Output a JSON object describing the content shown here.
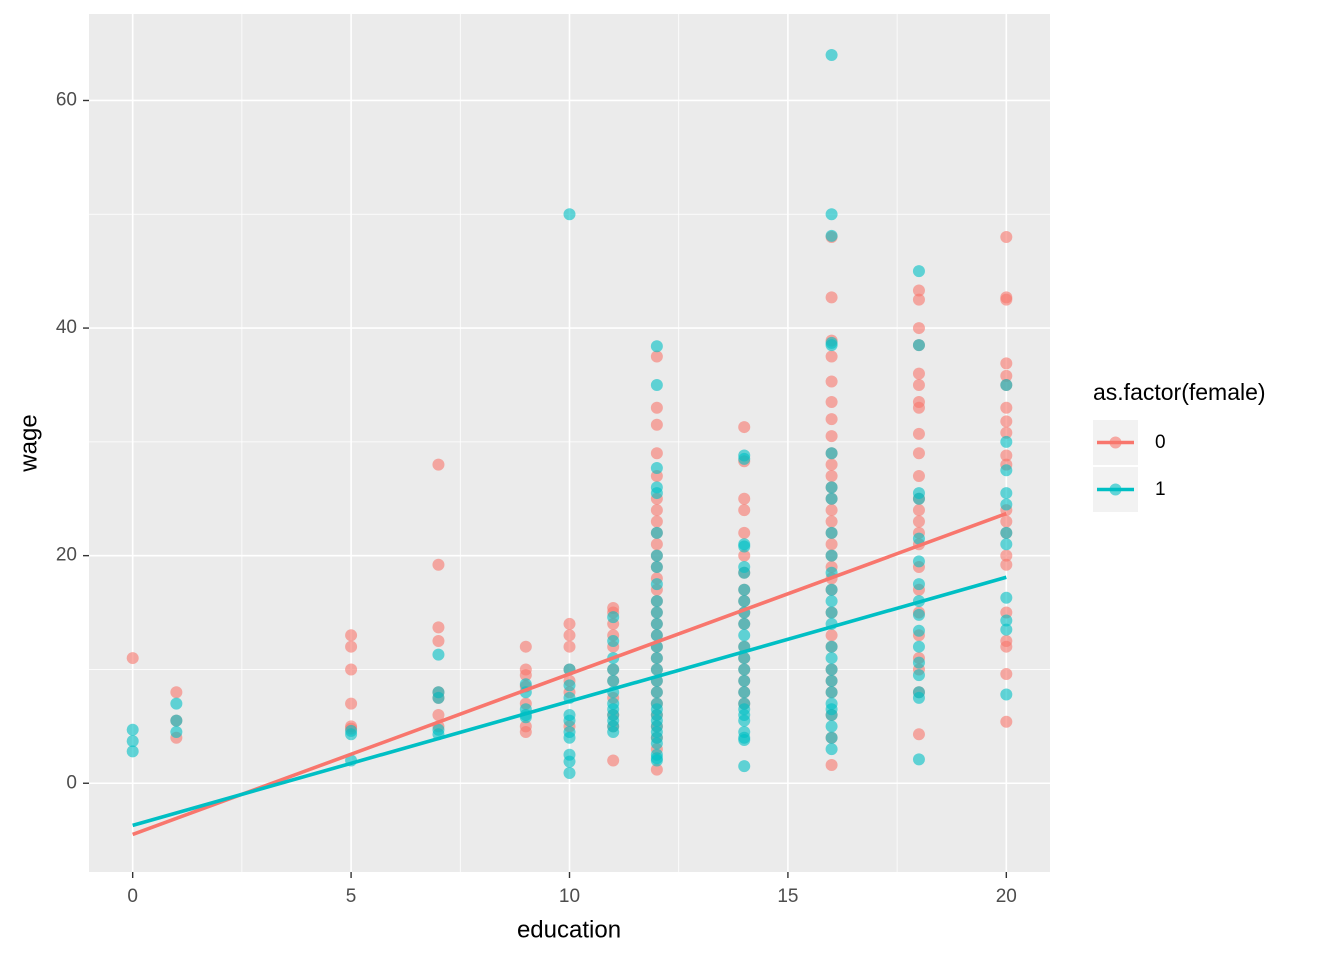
{
  "chart_data": {
    "type": "scatter",
    "x_label": "education",
    "y_label": "wage",
    "legend_title": "as.factor(female)",
    "legend_position": "right",
    "grid": true,
    "minor_grid": true,
    "xlim": [
      -1,
      21
    ],
    "ylim": [
      -7.8,
      67.6
    ],
    "xticks": [
      0,
      5,
      10,
      15,
      20
    ],
    "yticks": [
      0,
      20,
      40,
      60
    ],
    "series": [
      {
        "name": "0",
        "color": "#F8766D",
        "x": [
          0,
          1,
          1,
          1,
          5,
          5,
          5,
          5,
          5,
          5,
          7,
          7,
          7,
          7,
          7,
          7,
          7,
          7,
          9,
          9,
          9,
          9,
          9,
          9,
          9,
          10,
          10,
          10,
          10,
          10,
          10,
          10,
          11,
          11,
          11,
          11,
          11,
          11,
          11,
          11,
          11,
          11,
          11,
          12,
          12,
          12,
          12,
          12,
          12,
          12,
          12,
          12,
          12,
          12,
          12,
          12,
          12,
          12,
          12,
          12,
          12,
          12,
          12,
          12,
          12,
          12,
          12,
          12,
          12,
          12,
          12,
          12,
          14,
          14,
          14,
          14,
          14,
          14,
          14,
          14,
          14,
          14,
          14,
          14,
          14,
          14,
          14,
          14,
          14,
          16,
          16,
          16,
          16,
          16,
          16,
          16,
          16,
          16,
          16,
          16,
          16,
          16,
          16,
          16,
          16,
          16,
          16,
          16,
          16,
          16,
          16,
          16,
          16,
          16,
          16,
          16,
          16,
          16,
          16,
          18,
          18,
          18,
          18,
          18,
          18,
          18,
          18,
          18,
          18,
          18,
          18,
          18,
          18,
          18,
          18,
          18,
          18,
          18,
          18,
          18,
          18,
          18,
          18,
          20,
          20,
          20,
          20,
          20,
          20,
          20,
          20,
          20,
          20,
          20,
          20,
          20,
          20,
          20,
          20,
          20,
          20,
          20,
          20,
          20
        ],
        "values": [
          11,
          8,
          5.5,
          4,
          13,
          12,
          10,
          7,
          5,
          4.8,
          28,
          19.2,
          13.7,
          12.5,
          8,
          7.5,
          6,
          5,
          12,
          10,
          9.5,
          8.5,
          7,
          5,
          4.5,
          14,
          13,
          12,
          10,
          9,
          8,
          5,
          15.4,
          15,
          14,
          13,
          12,
          10,
          9,
          7.5,
          6,
          5,
          2,
          37.5,
          33,
          31.5,
          29,
          27,
          25,
          24,
          23,
          22,
          21,
          20,
          19,
          18,
          17,
          16,
          15,
          14,
          13,
          12,
          11,
          10,
          9,
          8,
          7,
          6,
          5,
          4,
          3,
          1.2,
          31.3,
          28.3,
          25,
          24,
          22,
          20,
          18.5,
          17,
          16,
          15,
          14,
          12,
          11,
          10,
          9,
          8,
          7,
          48,
          42.7,
          38.9,
          37.5,
          35.3,
          33.5,
          32,
          30.5,
          29,
          28,
          27,
          26,
          25,
          24,
          23,
          22,
          21,
          20,
          19,
          18,
          17,
          15,
          13,
          12,
          10,
          9,
          8,
          6,
          4,
          1.6,
          43.3,
          42.5,
          40,
          38.5,
          36,
          35,
          33.5,
          33,
          30.7,
          29,
          27,
          25,
          24,
          23,
          22,
          21,
          19,
          17,
          15,
          13,
          11,
          10,
          8,
          4.3,
          48,
          42.7,
          42.5,
          36.9,
          35.8,
          35,
          33,
          31.8,
          30.8,
          28.8,
          28,
          24,
          23,
          22,
          20,
          19.2,
          15,
          12.5,
          12,
          9.6,
          5.4
        ],
        "fit_x": [
          0,
          20
        ],
        "fit_values": [
          -4.5,
          23.7
        ]
      },
      {
        "name": "1",
        "color": "#00BFC4",
        "x": [
          0,
          0,
          0,
          1,
          1,
          1,
          5,
          5,
          5,
          7,
          7,
          7,
          7,
          7,
          9,
          9,
          9,
          9,
          9,
          10,
          10,
          10,
          10,
          10,
          10,
          10,
          10,
          10,
          10,
          10,
          11,
          11,
          11,
          11,
          11,
          11,
          11,
          11,
          11,
          11,
          11,
          11,
          12,
          12,
          12,
          12,
          12,
          12,
          12,
          12,
          12,
          12,
          12,
          12,
          12,
          12,
          12,
          12,
          12,
          12,
          12,
          12,
          12,
          12,
          12,
          12,
          12,
          12,
          12,
          12,
          12,
          14,
          14,
          14,
          14,
          14,
          14,
          14,
          14,
          14,
          14,
          14,
          14,
          14,
          14,
          14,
          14,
          14,
          14,
          14,
          14,
          14,
          14,
          14,
          14,
          16,
          16,
          16,
          16,
          16,
          16,
          16,
          16,
          16,
          16,
          16,
          16,
          16,
          16,
          16,
          16,
          16,
          16,
          16,
          16,
          16,
          16,
          16,
          16,
          16,
          16,
          18,
          18,
          18,
          18,
          18,
          18,
          18,
          18,
          18,
          18,
          18,
          18,
          18,
          18,
          18,
          18,
          20,
          20,
          20,
          20,
          20,
          20,
          20,
          20,
          20,
          20,
          20
        ],
        "values": [
          4.7,
          3.7,
          2.8,
          7,
          5.5,
          4.5,
          4.6,
          4.3,
          2,
          11.3,
          8,
          7.5,
          4.7,
          4.3,
          8.7,
          8,
          6.5,
          6,
          5.8,
          50,
          10,
          8.6,
          7.5,
          6,
          5.5,
          4.5,
          4,
          2.5,
          1.9,
          0.9,
          14.6,
          12.5,
          11,
          10,
          9,
          8,
          7,
          6.5,
          6,
          5.5,
          5,
          4.5,
          38.4,
          35,
          27.7,
          26,
          25.5,
          22,
          20,
          19,
          17.5,
          16,
          15,
          14,
          13,
          12,
          11,
          10,
          9,
          8,
          7,
          6.5,
          6,
          5.5,
          5,
          4.5,
          4,
          3.5,
          2.5,
          2,
          2.2,
          28.8,
          28.5,
          21,
          20.8,
          19,
          18.5,
          17,
          16,
          15,
          14,
          13,
          12,
          11,
          10,
          9,
          8,
          7,
          6.5,
          6,
          5.5,
          4.5,
          4,
          3.8,
          1.5,
          64,
          50,
          48.1,
          38.7,
          38.5,
          29,
          26,
          25,
          22,
          20,
          18.5,
          17,
          16,
          15,
          14,
          12,
          11,
          10,
          9,
          8,
          7,
          6.5,
          6,
          5,
          4,
          3,
          45,
          38.5,
          25.5,
          25,
          21.5,
          19.5,
          17.5,
          16,
          14.8,
          13.4,
          12,
          10.6,
          9.5,
          8,
          7.5,
          2.1,
          35,
          30,
          27.5,
          25.5,
          24.5,
          22,
          21,
          16.3,
          14.3,
          13.5,
          7.8
        ],
        "fit_x": [
          0,
          20
        ],
        "fit_values": [
          -3.7,
          18.1
        ]
      }
    ]
  }
}
